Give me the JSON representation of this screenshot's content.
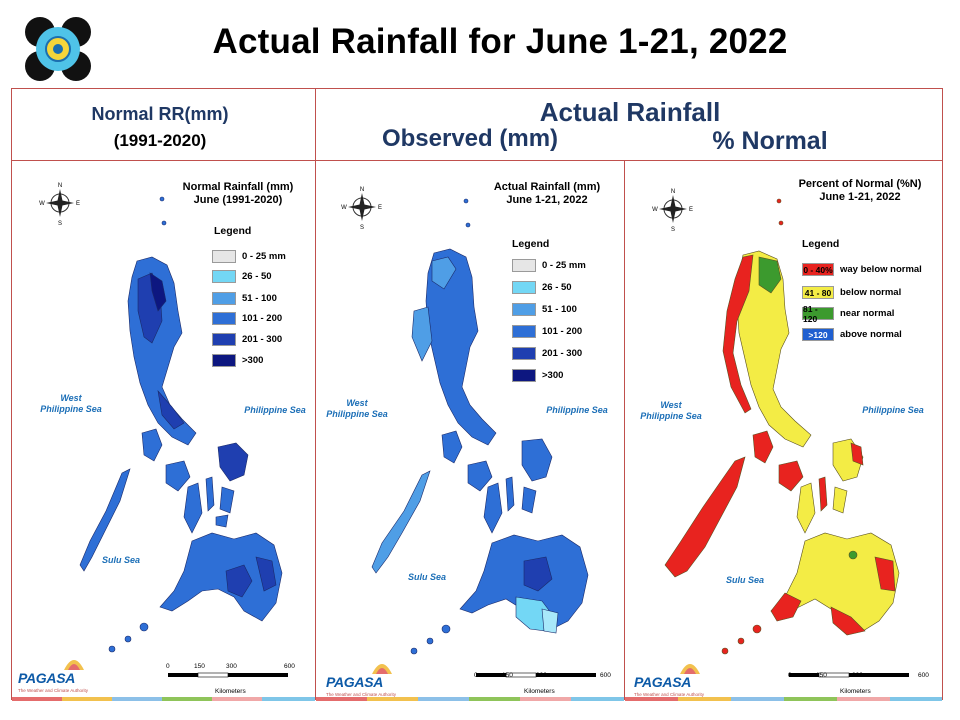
{
  "title": "Actual Rainfall for June 1-21, 2022",
  "headers": {
    "normal_line1": "Normal RR(mm)",
    "normal_line2": "(1991-2020)",
    "actual": "Actual Rainfall",
    "observed": "Observed (mm)",
    "percent": "% Normal"
  },
  "maps": [
    {
      "title": "Normal Rainfall (mm)\nJune (1991-2020)",
      "legend_title": "Legend",
      "legend": [
        {
          "label": "0 - 25 mm",
          "color": "#e6e6e6"
        },
        {
          "label": "26 - 50",
          "color": "#73d7f5"
        },
        {
          "label": "51 - 100",
          "color": "#4f9ee6"
        },
        {
          "label": "101 - 200",
          "color": "#2e6fd6"
        },
        {
          "label": "201 - 300",
          "color": "#1f3fb0"
        },
        {
          "label": ">300",
          "color": "#0d1780"
        }
      ],
      "sea_labels": [
        "West\nPhilippine Sea",
        "Philippine Sea",
        "Sulu Sea"
      ],
      "scale": [
        "0",
        "150",
        "300",
        "600",
        "Kilometers"
      ]
    },
    {
      "title": "Actual Rainfall (mm)\nJune 1-21, 2022",
      "legend_title": "Legend",
      "legend": [
        {
          "label": "0 - 25 mm",
          "color": "#e6e6e6"
        },
        {
          "label": "26 - 50",
          "color": "#73d7f5"
        },
        {
          "label": "51 - 100",
          "color": "#4f9ee6"
        },
        {
          "label": "101 - 200",
          "color": "#2e6fd6"
        },
        {
          "label": "201 - 300",
          "color": "#1f3fb0"
        },
        {
          "label": ">300",
          "color": "#0d1780"
        }
      ],
      "sea_labels": [
        "West\nPhilippine Sea",
        "Philippine Sea",
        "Sulu Sea"
      ],
      "scale": [
        "0",
        "150",
        "300",
        "600",
        "Kilometers"
      ]
    },
    {
      "title": "Percent of Normal (%N)\nJune 1-21, 2022",
      "legend_title": "Legend",
      "legend": [
        {
          "swatch": "0 - 40%",
          "label": "way below normal",
          "color": "#e8231f"
        },
        {
          "swatch": "41 - 80",
          "label": "below normal",
          "color": "#f3ec45"
        },
        {
          "swatch": "81 - 120",
          "label": "near normal",
          "color": "#3c9a2e"
        },
        {
          "swatch": ">120",
          "label": "above normal",
          "color": "#1f5fd0"
        }
      ],
      "sea_labels": [
        "West\nPhilippine Sea",
        "Philippine Sea",
        "Sulu Sea"
      ],
      "scale": [
        "0",
        "150",
        "300",
        "600",
        "Kilometers"
      ]
    }
  ],
  "logo": {
    "name": "DOST",
    "brand": "PAGASA",
    "sub": "The Weather and Climate Authority"
  },
  "footer_colors": [
    "#e46c6c",
    "#f2c14e",
    "#8cc0e8",
    "#8fc45a",
    "#f0a8a8",
    "#7fc6e8"
  ]
}
